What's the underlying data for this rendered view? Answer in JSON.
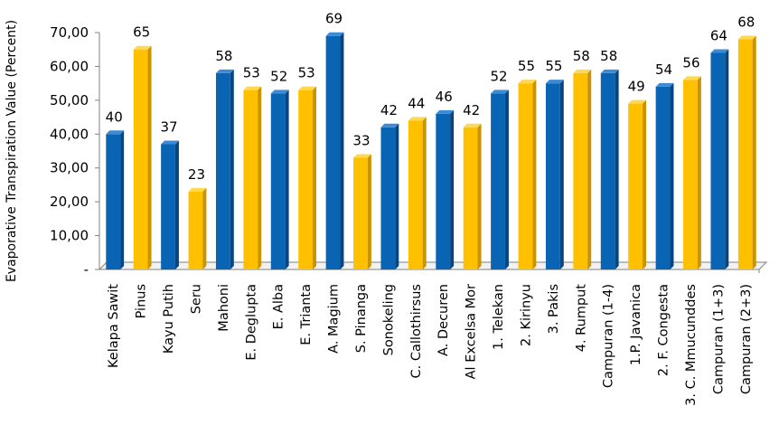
{
  "chart_data": {
    "type": "bar",
    "title": "",
    "xlabel": "",
    "ylabel": "Evaporative Transpiration Value (Percent)",
    "ylim": [
      0,
      70
    ],
    "yticks": [
      0,
      10,
      20,
      30,
      40,
      50,
      60,
      70
    ],
    "ytick_labels": [
      "-",
      "10,00",
      "20,00",
      "30,00",
      "40,00",
      "50,00",
      "60,00",
      "70,00"
    ],
    "grid": false,
    "legend": "none",
    "three_d": true,
    "colors": {
      "blue": "#0a64b4",
      "yellow": "#ffc000"
    },
    "categories": [
      "Kelapa Sawit",
      "Pinus",
      "Kayu Putih",
      "Seru",
      "Mahoni",
      "E. Deglupta",
      "E. Alba",
      "E. Trianta",
      "A. Magium",
      "S. Pinanga",
      "Sonokeling",
      "C. Callothirsus",
      "A. Decuren",
      "Al Excelsa Mor",
      "1. Telekan",
      "2. Kirinyu",
      "3. Pakis",
      "4. Rumput",
      "Campuran (1-4)",
      "1.P. Javanica",
      "2. F. Congesta",
      "3. C. Mmucunddes",
      "Campuran (1+3)",
      "Campuran (2+3)"
    ],
    "values": [
      40,
      65,
      37,
      23,
      58,
      53,
      52,
      53,
      69,
      33,
      42,
      44,
      46,
      42,
      52,
      55,
      55,
      58,
      58,
      49,
      54,
      56,
      64,
      68
    ],
    "value_labels": [
      "40",
      "65",
      "37",
      "23",
      "58",
      "53",
      "52",
      "53",
      "69",
      "33",
      "42",
      "44",
      "46",
      "42",
      "52",
      "55",
      "55",
      "58",
      "58",
      "49",
      "54",
      "56",
      "64",
      "68"
    ],
    "bar_colors": [
      "blue",
      "yellow",
      "blue",
      "yellow",
      "blue",
      "yellow",
      "blue",
      "yellow",
      "blue",
      "yellow",
      "blue",
      "yellow",
      "blue",
      "yellow",
      "blue",
      "yellow",
      "blue",
      "yellow",
      "blue",
      "yellow",
      "blue",
      "yellow",
      "blue",
      "yellow"
    ]
  }
}
